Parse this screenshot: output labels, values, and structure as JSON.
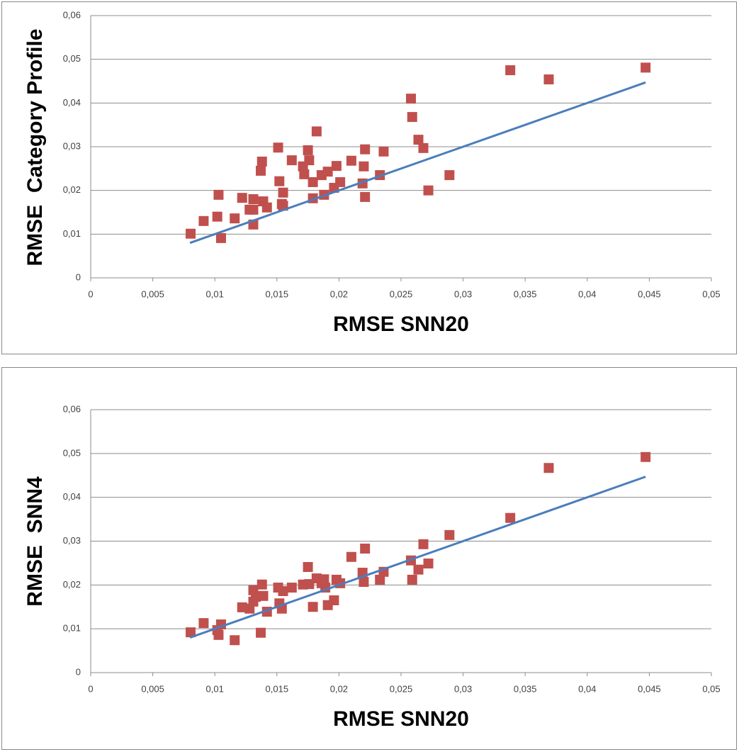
{
  "chart_data": [
    {
      "type": "scatter",
      "x_label": "RMSE SNN20",
      "y_label": "RMSE  Category Profile",
      "xlim": [
        0,
        0.05
      ],
      "ylim": [
        0,
        0.06
      ],
      "grid": true,
      "xticks": [
        0,
        {
          "value": 0.005,
          "label": "0,005"
        },
        {
          "value": 0.01,
          "label": "0,01"
        },
        {
          "value": 0.015,
          "label": "0,015"
        },
        {
          "value": 0.02,
          "label": "0,02"
        },
        {
          "value": 0.025,
          "label": "0,025"
        },
        {
          "value": 0.03,
          "label": "0,03"
        },
        {
          "value": 0.035,
          "label": "0,035"
        },
        {
          "value": 0.04,
          "label": "0,04"
        },
        {
          "value": 0.045,
          "label": "0,045"
        },
        {
          "value": 0.05,
          "label": "0,05"
        }
      ],
      "yticks": [
        0,
        {
          "value": 0.01,
          "label": "0,01"
        },
        {
          "value": 0.02,
          "label": "0,02"
        },
        {
          "value": 0.03,
          "label": "0,03"
        },
        {
          "value": 0.04,
          "label": "0,04"
        },
        {
          "value": 0.05,
          "label": "0,05"
        },
        {
          "value": 0.06,
          "label": "0,06"
        }
      ],
      "series": [
        {
          "color": "#c0504d",
          "x": [
            0.00805,
            0.0091,
            0.0102,
            0.0103,
            0.0105,
            0.0116,
            0.0122,
            0.0128,
            0.0131,
            0.0131,
            0.0131,
            0.0137,
            0.0138,
            0.0139,
            0.0142,
            0.0151,
            0.0152,
            0.0154,
            0.0155,
            0.0155,
            0.0162,
            0.0171,
            0.0172,
            0.0175,
            0.0176,
            0.0179,
            0.0179,
            0.0182,
            0.0186,
            0.0188,
            0.0191,
            0.0196,
            0.0198,
            0.0201,
            0.021,
            0.0219,
            0.022,
            0.0221,
            0.0221,
            0.0233,
            0.0236,
            0.0258,
            0.0259,
            0.0264,
            0.0268,
            0.0272,
            0.0289,
            0.0338,
            0.0369,
            0.0447
          ],
          "values": [
            0.0101,
            0.013,
            0.014,
            0.019,
            0.0091,
            0.0136,
            0.0183,
            0.0156,
            0.018,
            0.0122,
            0.0156,
            0.0245,
            0.0266,
            0.0175,
            0.0161,
            0.0298,
            0.0221,
            0.0169,
            0.0165,
            0.0195,
            0.0269,
            0.0255,
            0.0237,
            0.0292,
            0.0269,
            0.0219,
            0.0182,
            0.0335,
            0.0235,
            0.019,
            0.0243,
            0.0206,
            0.0256,
            0.0219,
            0.0268,
            0.0216,
            0.0255,
            0.0294,
            0.0185,
            0.0235,
            0.0289,
            0.041,
            0.0368,
            0.0316,
            0.0297,
            0.02,
            0.0235,
            0.0475,
            0.0454,
            0.0481
          ]
        }
      ],
      "trendline": {
        "color": "#4a7ebb",
        "x": [
          0.008,
          0.0447
        ],
        "values": [
          0.008,
          0.0447
        ]
      }
    },
    {
      "type": "scatter",
      "x_label": "RMSE SNN20",
      "y_label": "RMSE  SNN4",
      "xlim": [
        0,
        0.05
      ],
      "ylim": [
        0,
        0.06
      ],
      "grid": true,
      "xticks": [
        0,
        {
          "value": 0.005,
          "label": "0,005"
        },
        {
          "value": 0.01,
          "label": "0,01"
        },
        {
          "value": 0.015,
          "label": "0,015"
        },
        {
          "value": 0.02,
          "label": "0,02"
        },
        {
          "value": 0.025,
          "label": "0,025"
        },
        {
          "value": 0.03,
          "label": "0,03"
        },
        {
          "value": 0.035,
          "label": "0,035"
        },
        {
          "value": 0.04,
          "label": "0,04"
        },
        {
          "value": 0.045,
          "label": "0,045"
        },
        {
          "value": 0.05,
          "label": "0,05"
        }
      ],
      "yticks": [
        0,
        {
          "value": 0.01,
          "label": "0,01"
        },
        {
          "value": 0.02,
          "label": "0,02"
        },
        {
          "value": 0.03,
          "label": "0,03"
        },
        {
          "value": 0.04,
          "label": "0,04"
        },
        {
          "value": 0.05,
          "label": "0,05"
        },
        {
          "value": 0.06,
          "label": "0,06"
        }
      ],
      "series": [
        {
          "color": "#c0504d",
          "x": [
            0.00805,
            0.0091,
            0.0102,
            0.0103,
            0.0105,
            0.0116,
            0.0122,
            0.0128,
            0.0131,
            0.0131,
            0.0133,
            0.0137,
            0.0138,
            0.0139,
            0.0142,
            0.0151,
            0.0152,
            0.0154,
            0.0155,
            0.0162,
            0.0171,
            0.0175,
            0.0176,
            0.0179,
            0.0182,
            0.0186,
            0.0188,
            0.0189,
            0.0191,
            0.0196,
            0.0198,
            0.0201,
            0.021,
            0.0219,
            0.022,
            0.0221,
            0.0233,
            0.0236,
            0.0258,
            0.0259,
            0.0264,
            0.0268,
            0.0272,
            0.0289,
            0.0338,
            0.0369,
            0.0447
          ],
          "values": [
            0.0092,
            0.0113,
            0.0097,
            0.0086,
            0.011,
            0.0074,
            0.0149,
            0.0146,
            0.0188,
            0.0162,
            0.0173,
            0.0091,
            0.0201,
            0.0175,
            0.0139,
            0.0194,
            0.0158,
            0.0146,
            0.0186,
            0.0194,
            0.0201,
            0.0241,
            0.0202,
            0.015,
            0.0215,
            0.0204,
            0.0213,
            0.0194,
            0.0154,
            0.0165,
            0.0212,
            0.0204,
            0.0264,
            0.0228,
            0.0207,
            0.0283,
            0.0212,
            0.023,
            0.0256,
            0.0212,
            0.0235,
            0.0293,
            0.0249,
            0.0314,
            0.0353,
            0.0467,
            0.0492
          ]
        }
      ],
      "trendline": {
        "color": "#4a7ebb",
        "x": [
          0.008,
          0.0447
        ],
        "values": [
          0.008,
          0.0447
        ]
      }
    }
  ]
}
